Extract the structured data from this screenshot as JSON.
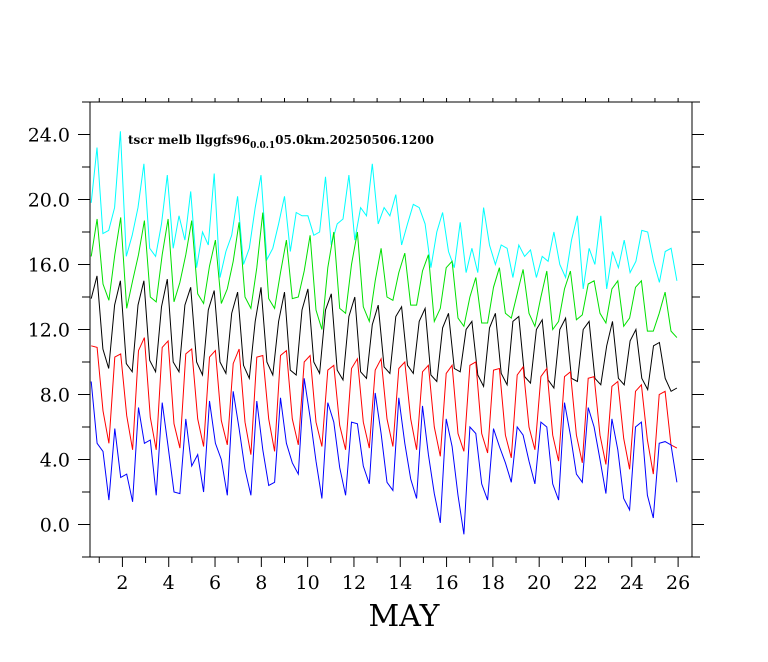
{
  "chart_data": {
    "type": "line",
    "title_main": "tscr melb llggfs96",
    "title_sub": "0.0.1",
    "title_rest": "05.0km.20250506.1200",
    "xlabel": "MAY",
    "ylabel": "",
    "xlim": [
      0.6,
      26.6
    ],
    "ylim": [
      -2.0,
      26.0
    ],
    "x_ticks": [
      2,
      4,
      6,
      8,
      10,
      12,
      14,
      16,
      18,
      20,
      22,
      24,
      26
    ],
    "y_ticks": [
      "0.0",
      "4.0",
      "8.0",
      "12.0",
      "16.0",
      "20.0",
      "24.0"
    ],
    "series": [
      {
        "color": "#00ffff",
        "values": [
          19.8,
          23.2,
          17.9,
          18.1,
          19.5,
          24.2,
          16.5,
          17.8,
          19.5,
          22.2,
          17.0,
          16.5,
          18.5,
          21.5,
          17.0,
          19.0,
          17.5,
          20.5,
          15.8,
          18.0,
          17.2,
          21.6,
          15.2,
          16.8,
          17.8,
          20.2,
          16.0,
          17.0,
          19.5,
          21.5,
          16.3,
          17.0,
          18.5,
          20.2,
          16.8,
          19.2,
          19.0,
          19.0,
          17.8,
          18.0,
          21.4,
          17.2,
          18.5,
          18.8,
          21.5,
          17.5,
          19.5,
          19.0,
          22.2,
          18.5,
          19.5,
          19.0,
          20.3,
          17.2,
          18.5,
          19.7,
          19.5,
          18.5,
          15.8,
          18.0,
          19.2,
          16.8,
          15.8,
          18.6,
          15.5,
          17.0,
          15.5,
          19.5,
          17.2,
          16.0,
          17.2,
          17.0,
          15.2,
          17.2,
          16.5,
          16.9,
          15.2,
          16.5,
          16.2,
          18.0,
          16.0,
          15.2,
          17.5,
          19.0,
          14.5,
          17.0,
          16.0,
          19.0,
          14.5,
          16.8,
          15.8,
          17.5,
          15.5,
          16.2,
          18.1,
          18.0,
          16.2,
          14.9,
          16.8,
          17.0,
          15.0
        ]
      },
      {
        "color": "#00e000",
        "values": [
          16.5,
          18.8,
          14.8,
          13.8,
          16.6,
          18.9,
          13.3,
          15.0,
          16.6,
          18.7,
          14.0,
          13.7,
          16.6,
          18.8,
          13.7,
          14.9,
          16.6,
          18.7,
          14.2,
          13.6,
          15.9,
          17.5,
          13.6,
          14.5,
          16.2,
          18.6,
          14.0,
          13.3,
          15.8,
          19.2,
          13.9,
          13.3,
          15.5,
          17.5,
          13.9,
          14.0,
          15.6,
          17.8,
          13.2,
          12.0,
          15.8,
          18.0,
          13.3,
          13.0,
          16.0,
          18.0,
          13.4,
          12.5,
          15.0,
          17.0,
          14.0,
          13.8,
          15.5,
          16.7,
          13.5,
          13.5,
          15.6,
          16.6,
          12.5,
          13.3,
          15.8,
          16.2,
          12.7,
          12.2,
          14.0,
          15.2,
          12.4,
          12.4,
          14.6,
          15.8,
          13.0,
          12.7,
          14.2,
          15.7,
          13.0,
          12.2,
          14.0,
          15.6,
          12.0,
          12.5,
          14.5,
          15.6,
          12.6,
          12.9,
          14.8,
          15.0,
          13.0,
          12.4,
          14.5,
          15.0,
          12.2,
          12.7,
          14.6,
          15.0,
          11.9,
          11.9,
          13.0,
          14.3,
          11.9,
          11.5
        ]
      },
      {
        "color": "#000000",
        "values": [
          13.9,
          15.3,
          10.8,
          9.6,
          13.5,
          15.0,
          9.9,
          9.4,
          13.5,
          15.0,
          10.1,
          9.4,
          13.4,
          15.1,
          10.0,
          9.4,
          13.5,
          14.6,
          10.0,
          9.2,
          13.2,
          14.4,
          10.0,
          9.3,
          13.0,
          14.3,
          9.8,
          9.0,
          12.5,
          14.6,
          10.0,
          9.2,
          12.5,
          14.3,
          9.5,
          9.2,
          13.2,
          14.5,
          10.0,
          9.3,
          13.2,
          14.2,
          9.5,
          8.9,
          12.8,
          14.0,
          9.4,
          9.0,
          12.3,
          13.5,
          9.7,
          9.3,
          12.8,
          13.4,
          9.8,
          9.3,
          12.5,
          13.3,
          9.2,
          8.8,
          12.1,
          13.0,
          9.6,
          9.4,
          12.0,
          12.5,
          9.2,
          8.5,
          12.1,
          13.0,
          9.3,
          8.6,
          12.5,
          12.8,
          9.1,
          8.7,
          12.0,
          12.6,
          8.9,
          8.4,
          12.0,
          12.7,
          9.0,
          8.8,
          12.0,
          12.5,
          9.0,
          8.6,
          11.0,
          12.5,
          9.0,
          8.6,
          11.3,
          12.0,
          9.0,
          8.3,
          11.0,
          11.2,
          9.0,
          8.2,
          8.4
        ]
      },
      {
        "color": "#ff0000",
        "values": [
          11.0,
          10.9,
          7.0,
          5.0,
          10.3,
          10.5,
          6.7,
          4.6,
          10.7,
          11.5,
          6.6,
          4.6,
          10.9,
          11.3,
          6.2,
          4.7,
          10.5,
          10.8,
          6.5,
          4.8,
          10.3,
          10.7,
          6.4,
          4.9,
          9.9,
          10.8,
          6.3,
          4.3,
          10.3,
          10.4,
          6.5,
          4.5,
          10.4,
          10.7,
          6.5,
          4.9,
          10.0,
          10.4,
          6.3,
          4.8,
          9.5,
          9.8,
          6.1,
          4.6,
          9.6,
          10.2,
          6.3,
          4.7,
          9.5,
          10.2,
          6.5,
          4.8,
          9.6,
          10.0,
          6.5,
          4.6,
          9.4,
          9.8,
          6.0,
          4.2,
          9.3,
          9.8,
          5.6,
          4.5,
          9.8,
          10.0,
          5.6,
          4.4,
          9.5,
          9.6,
          5.5,
          4.1,
          9.2,
          9.7,
          6.0,
          4.6,
          9.1,
          9.6,
          5.5,
          3.9,
          9.1,
          9.4,
          5.5,
          3.8,
          9.0,
          9.1,
          5.5,
          3.7,
          8.5,
          8.8,
          5.3,
          3.4,
          8.2,
          8.6,
          5.2,
          3.1,
          8.0,
          8.2,
          4.9,
          4.7
        ]
      },
      {
        "color": "#0000ff",
        "values": [
          8.8,
          5.0,
          4.5,
          1.5,
          5.9,
          2.9,
          3.1,
          1.4,
          7.2,
          5.0,
          5.2,
          1.8,
          7.5,
          4.8,
          2.0,
          1.9,
          6.5,
          3.6,
          4.3,
          2.0,
          7.6,
          5.0,
          4.0,
          1.8,
          8.2,
          5.9,
          3.4,
          1.8,
          7.6,
          4.6,
          2.4,
          2.6,
          7.8,
          5.0,
          3.8,
          3.1,
          9.0,
          6.6,
          3.9,
          1.6,
          7.5,
          6.3,
          3.5,
          1.8,
          6.3,
          6.2,
          3.6,
          2.5,
          8.1,
          5.6,
          2.6,
          2.1,
          7.8,
          5.0,
          2.8,
          1.6,
          7.3,
          4.3,
          1.9,
          0.1,
          6.5,
          4.8,
          1.8,
          -0.6,
          6.0,
          5.6,
          2.5,
          1.5,
          5.9,
          4.8,
          3.8,
          2.6,
          6.0,
          5.5,
          3.9,
          2.5,
          6.3,
          6.0,
          2.5,
          1.5,
          7.5,
          5.5,
          3.1,
          2.6,
          7.2,
          6.0,
          4.0,
          1.9,
          6.5,
          4.6,
          1.6,
          0.9,
          6.0,
          6.3,
          1.8,
          0.4,
          5.0,
          5.1,
          4.9,
          2.6
        ]
      }
    ]
  }
}
